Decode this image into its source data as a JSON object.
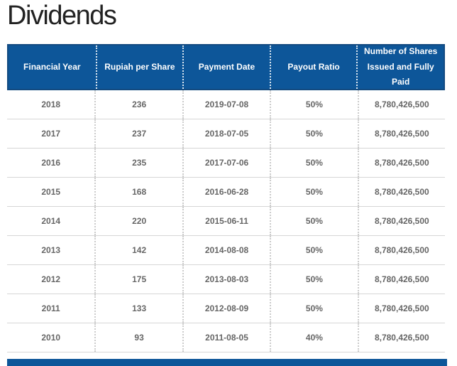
{
  "page": {
    "title": "Dividends"
  },
  "colors": {
    "header_bg": "#0d5699",
    "header_border": "#134a80",
    "header_text": "#ffffff",
    "body_text": "#666666",
    "row_line": "#d6d6d6",
    "dotted_line": "#cccccc",
    "title_text": "#222222",
    "footer_bar": "#0d5699"
  },
  "table": {
    "columns": [
      "Financial Year",
      "Rupiah per Share",
      "Payment Date",
      "Payout Ratio",
      "Number of Shares\nIssued and Fully Paid"
    ],
    "cell_keys": [
      "year",
      "rupiah_per_share",
      "payment_date",
      "payout_ratio",
      "shares"
    ],
    "rows": [
      {
        "year": "2018",
        "rupiah_per_share": "236",
        "payment_date": "2019-07-08",
        "payout_ratio": "50%",
        "shares": "8,780,426,500"
      },
      {
        "year": "2017",
        "rupiah_per_share": "237",
        "payment_date": "2018-07-05",
        "payout_ratio": "50%",
        "shares": "8,780,426,500"
      },
      {
        "year": "2016",
        "rupiah_per_share": "235",
        "payment_date": "2017-07-06",
        "payout_ratio": "50%",
        "shares": "8,780,426,500"
      },
      {
        "year": "2015",
        "rupiah_per_share": "168",
        "payment_date": "2016-06-28",
        "payout_ratio": "50%",
        "shares": "8,780,426,500"
      },
      {
        "year": "2014",
        "rupiah_per_share": "220",
        "payment_date": "2015-06-11",
        "payout_ratio": "50%",
        "shares": "8,780,426,500"
      },
      {
        "year": "2013",
        "rupiah_per_share": "142",
        "payment_date": "2014-08-08",
        "payout_ratio": "50%",
        "shares": "8,780,426,500"
      },
      {
        "year": "2012",
        "rupiah_per_share": "175",
        "payment_date": "2013-08-03",
        "payout_ratio": "50%",
        "shares": "8,780,426,500"
      },
      {
        "year": "2011",
        "rupiah_per_share": "133",
        "payment_date": "2012-08-09",
        "payout_ratio": "50%",
        "shares": "8,780,426,500"
      },
      {
        "year": "2010",
        "rupiah_per_share": "93",
        "payment_date": "2011-08-05",
        "payout_ratio": "40%",
        "shares": "8,780,426,500"
      }
    ]
  }
}
